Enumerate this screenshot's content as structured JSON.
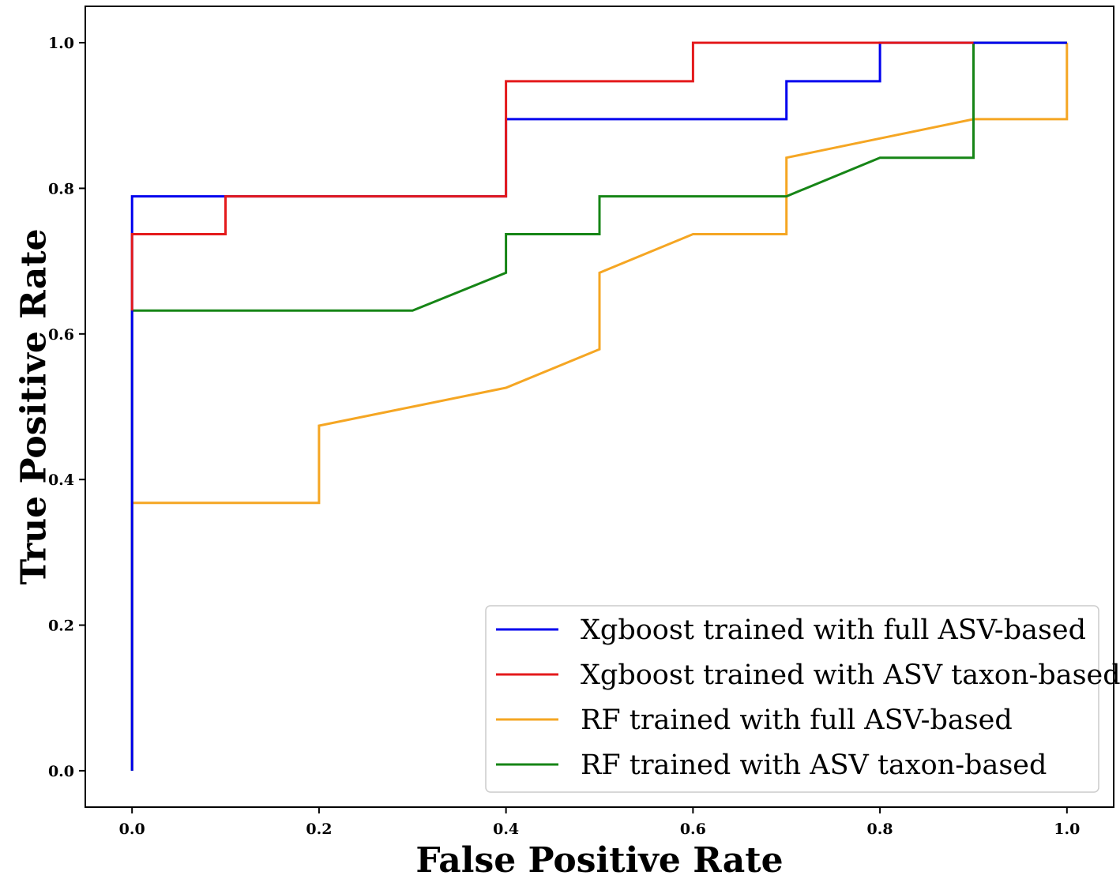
{
  "chart_data": {
    "type": "line",
    "title": "",
    "xlabel": "False Positive Rate",
    "ylabel": "True Positive Rate",
    "xlim": [
      -0.05,
      1.05
    ],
    "ylim": [
      -0.05,
      1.05
    ],
    "xticks": [
      0.0,
      0.2,
      0.4,
      0.6,
      0.8,
      1.0
    ],
    "yticks": [
      0.0,
      0.2,
      0.4,
      0.6,
      0.8,
      1.0
    ],
    "xtick_labels": [
      "0.0",
      "0.2",
      "0.4",
      "0.6",
      "0.8",
      "1.0"
    ],
    "ytick_labels": [
      "0.0",
      "0.2",
      "0.4",
      "0.6",
      "0.8",
      "1.0"
    ],
    "grid": false,
    "legend_position": "bottom-right",
    "series": [
      {
        "name": "Xgboost trained with full ASV-based",
        "color": "#0000ee",
        "x": [
          0.0,
          0.0,
          0.1,
          0.4,
          0.4,
          0.7,
          0.7,
          0.8,
          0.8,
          1.0
        ],
        "y": [
          0.0,
          0.789,
          0.789,
          0.789,
          0.895,
          0.895,
          0.947,
          0.947,
          1.0,
          1.0
        ]
      },
      {
        "name": "Xgboost trained with ASV taxon-based",
        "color": "#e41a1c",
        "x": [
          0.0,
          0.0,
          0.1,
          0.1,
          0.4,
          0.4,
          0.6,
          0.6,
          0.9
        ],
        "y": [
          0.632,
          0.737,
          0.737,
          0.789,
          0.789,
          0.947,
          0.947,
          1.0,
          1.0
        ]
      },
      {
        "name": "RF trained with full ASV-based",
        "color": "#f5a623",
        "x": [
          0.0,
          0.0,
          0.2,
          0.2,
          0.3,
          0.4,
          0.5,
          0.5,
          0.6,
          0.7,
          0.7,
          0.9,
          1.0,
          1.0
        ],
        "y": [
          0.0,
          0.368,
          0.368,
          0.474,
          0.5,
          0.526,
          0.579,
          0.684,
          0.737,
          0.737,
          0.842,
          0.895,
          0.895,
          1.0
        ]
      },
      {
        "name": "RF trained with ASV taxon-based",
        "color": "#168516",
        "x": [
          0.0,
          0.0,
          0.3,
          0.4,
          0.4,
          0.5,
          0.5,
          0.7,
          0.8,
          0.9,
          0.9,
          1.0
        ],
        "y": [
          0.0,
          0.632,
          0.632,
          0.684,
          0.737,
          0.737,
          0.789,
          0.789,
          0.842,
          0.842,
          1.0,
          1.0
        ]
      }
    ]
  }
}
